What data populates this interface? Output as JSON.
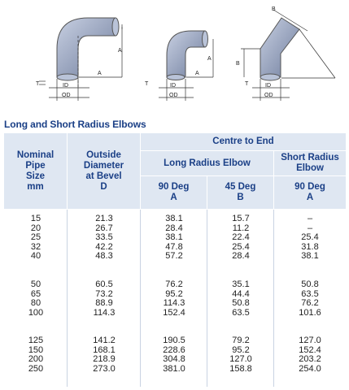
{
  "diagrams": {
    "labels": {
      "A": "A",
      "B": "B",
      "T": "T",
      "ID": "ID",
      "OD": "OD"
    }
  },
  "table_title": "Long and Short Radius Elbows",
  "headers": {
    "nominal": [
      "Nominal",
      "Pipe",
      "Size",
      "mm"
    ],
    "outside": [
      "Outside",
      "Diameter",
      "at Bevel",
      "D"
    ],
    "centre": "Centre to End",
    "long": "Long Radius Elbow",
    "short": [
      "Short Radius",
      "Elbow"
    ],
    "lr90": [
      "90 Deg",
      "A"
    ],
    "lr45": [
      "45 Deg",
      "B"
    ],
    "sr90": [
      "90 Deg",
      "A"
    ]
  },
  "groups": [
    [
      [
        "15",
        "21.3",
        "38.1",
        "15.7",
        "–"
      ],
      [
        "20",
        "26.7",
        "28.4",
        "11.2",
        "–"
      ],
      [
        "25",
        "33.5",
        "38.1",
        "22.4",
        "25.4"
      ],
      [
        "32",
        "42.2",
        "47.8",
        "25.4",
        "31.8"
      ],
      [
        "40",
        "48.3",
        "57.2",
        "28.4",
        "38.1"
      ]
    ],
    [
      [
        "50",
        "60.5",
        "76.2",
        "35.1",
        "50.8"
      ],
      [
        "65",
        "73.2",
        "95.2",
        "44.4",
        "63.5"
      ],
      [
        "80",
        "88.9",
        "114.3",
        "50.8",
        "76.2"
      ],
      [
        "100",
        "114.3",
        "152.4",
        "63.5",
        "101.6"
      ]
    ],
    [
      [
        "125",
        "141.2",
        "190.5",
        "79.2",
        "127.0"
      ],
      [
        "150",
        "168.1",
        "228.6",
        "95.2",
        "152.4"
      ],
      [
        "200",
        "218.9",
        "304.8",
        "127.0",
        "203.2"
      ],
      [
        "250",
        "273.0",
        "381.0",
        "158.8",
        "254.0"
      ]
    ]
  ],
  "colors": {
    "header_bg": "#dfe7f2",
    "header_text": "#1a3f86",
    "elbow_fill": "#7d8aa8",
    "elbow_face": "#b9c3d8"
  }
}
